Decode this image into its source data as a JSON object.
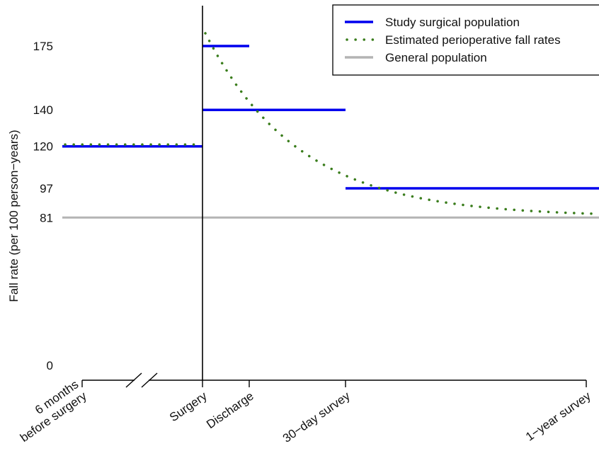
{
  "chart_data": {
    "type": "line",
    "title": "",
    "ylabel": "Fall rate (per 100 person−years)",
    "xlabel": "",
    "ylim": [
      0,
      185
    ],
    "y_ticks": [
      0,
      81,
      97,
      120,
      140,
      175
    ],
    "y_tick_labels": [
      "0",
      "81",
      "97",
      "120",
      "140",
      "175"
    ],
    "x_ticks": [
      {
        "label_lines": [
          "6 months",
          "before surgery"
        ]
      },
      {
        "label_lines": [
          "Surgery"
        ]
      },
      {
        "label_lines": [
          "Discharge"
        ]
      },
      {
        "label_lines": [
          "30−day survey"
        ]
      },
      {
        "label_lines": [
          "1−year survey"
        ]
      }
    ],
    "axis_break": true,
    "vertical_reference": "Surgery",
    "legend": {
      "placement": "top-right",
      "entries": [
        {
          "label": "Study surgical population",
          "style": "solid",
          "color": "#0000ee"
        },
        {
          "label": "Estimated perioperative fall rates",
          "style": "dotted",
          "color": "#3a7d1c"
        },
        {
          "label": "General population",
          "style": "solid",
          "color": "#b4b4b4"
        }
      ]
    },
    "series": [
      {
        "name": "Study surgical population",
        "color": "#0000ee",
        "style": "step-segments",
        "segments": [
          {
            "from": "6 months before surgery",
            "to": "Surgery",
            "y": 120
          },
          {
            "from": "Surgery",
            "to": "Discharge",
            "y": 175
          },
          {
            "from": "Surgery",
            "to": "30−day survey",
            "y": 140
          },
          {
            "from": "30−day survey",
            "to": "1−year survey",
            "y": 97
          }
        ]
      },
      {
        "name": "Estimated perioperative fall rates",
        "color": "#3a7d1c",
        "style": "dotted",
        "pre_surgery_y": 121,
        "post_surgery_start_y": 182,
        "post_surgery_end_y": 83
      },
      {
        "name": "General population",
        "color": "#b4b4b4",
        "style": "solid",
        "y": 81
      }
    ]
  }
}
